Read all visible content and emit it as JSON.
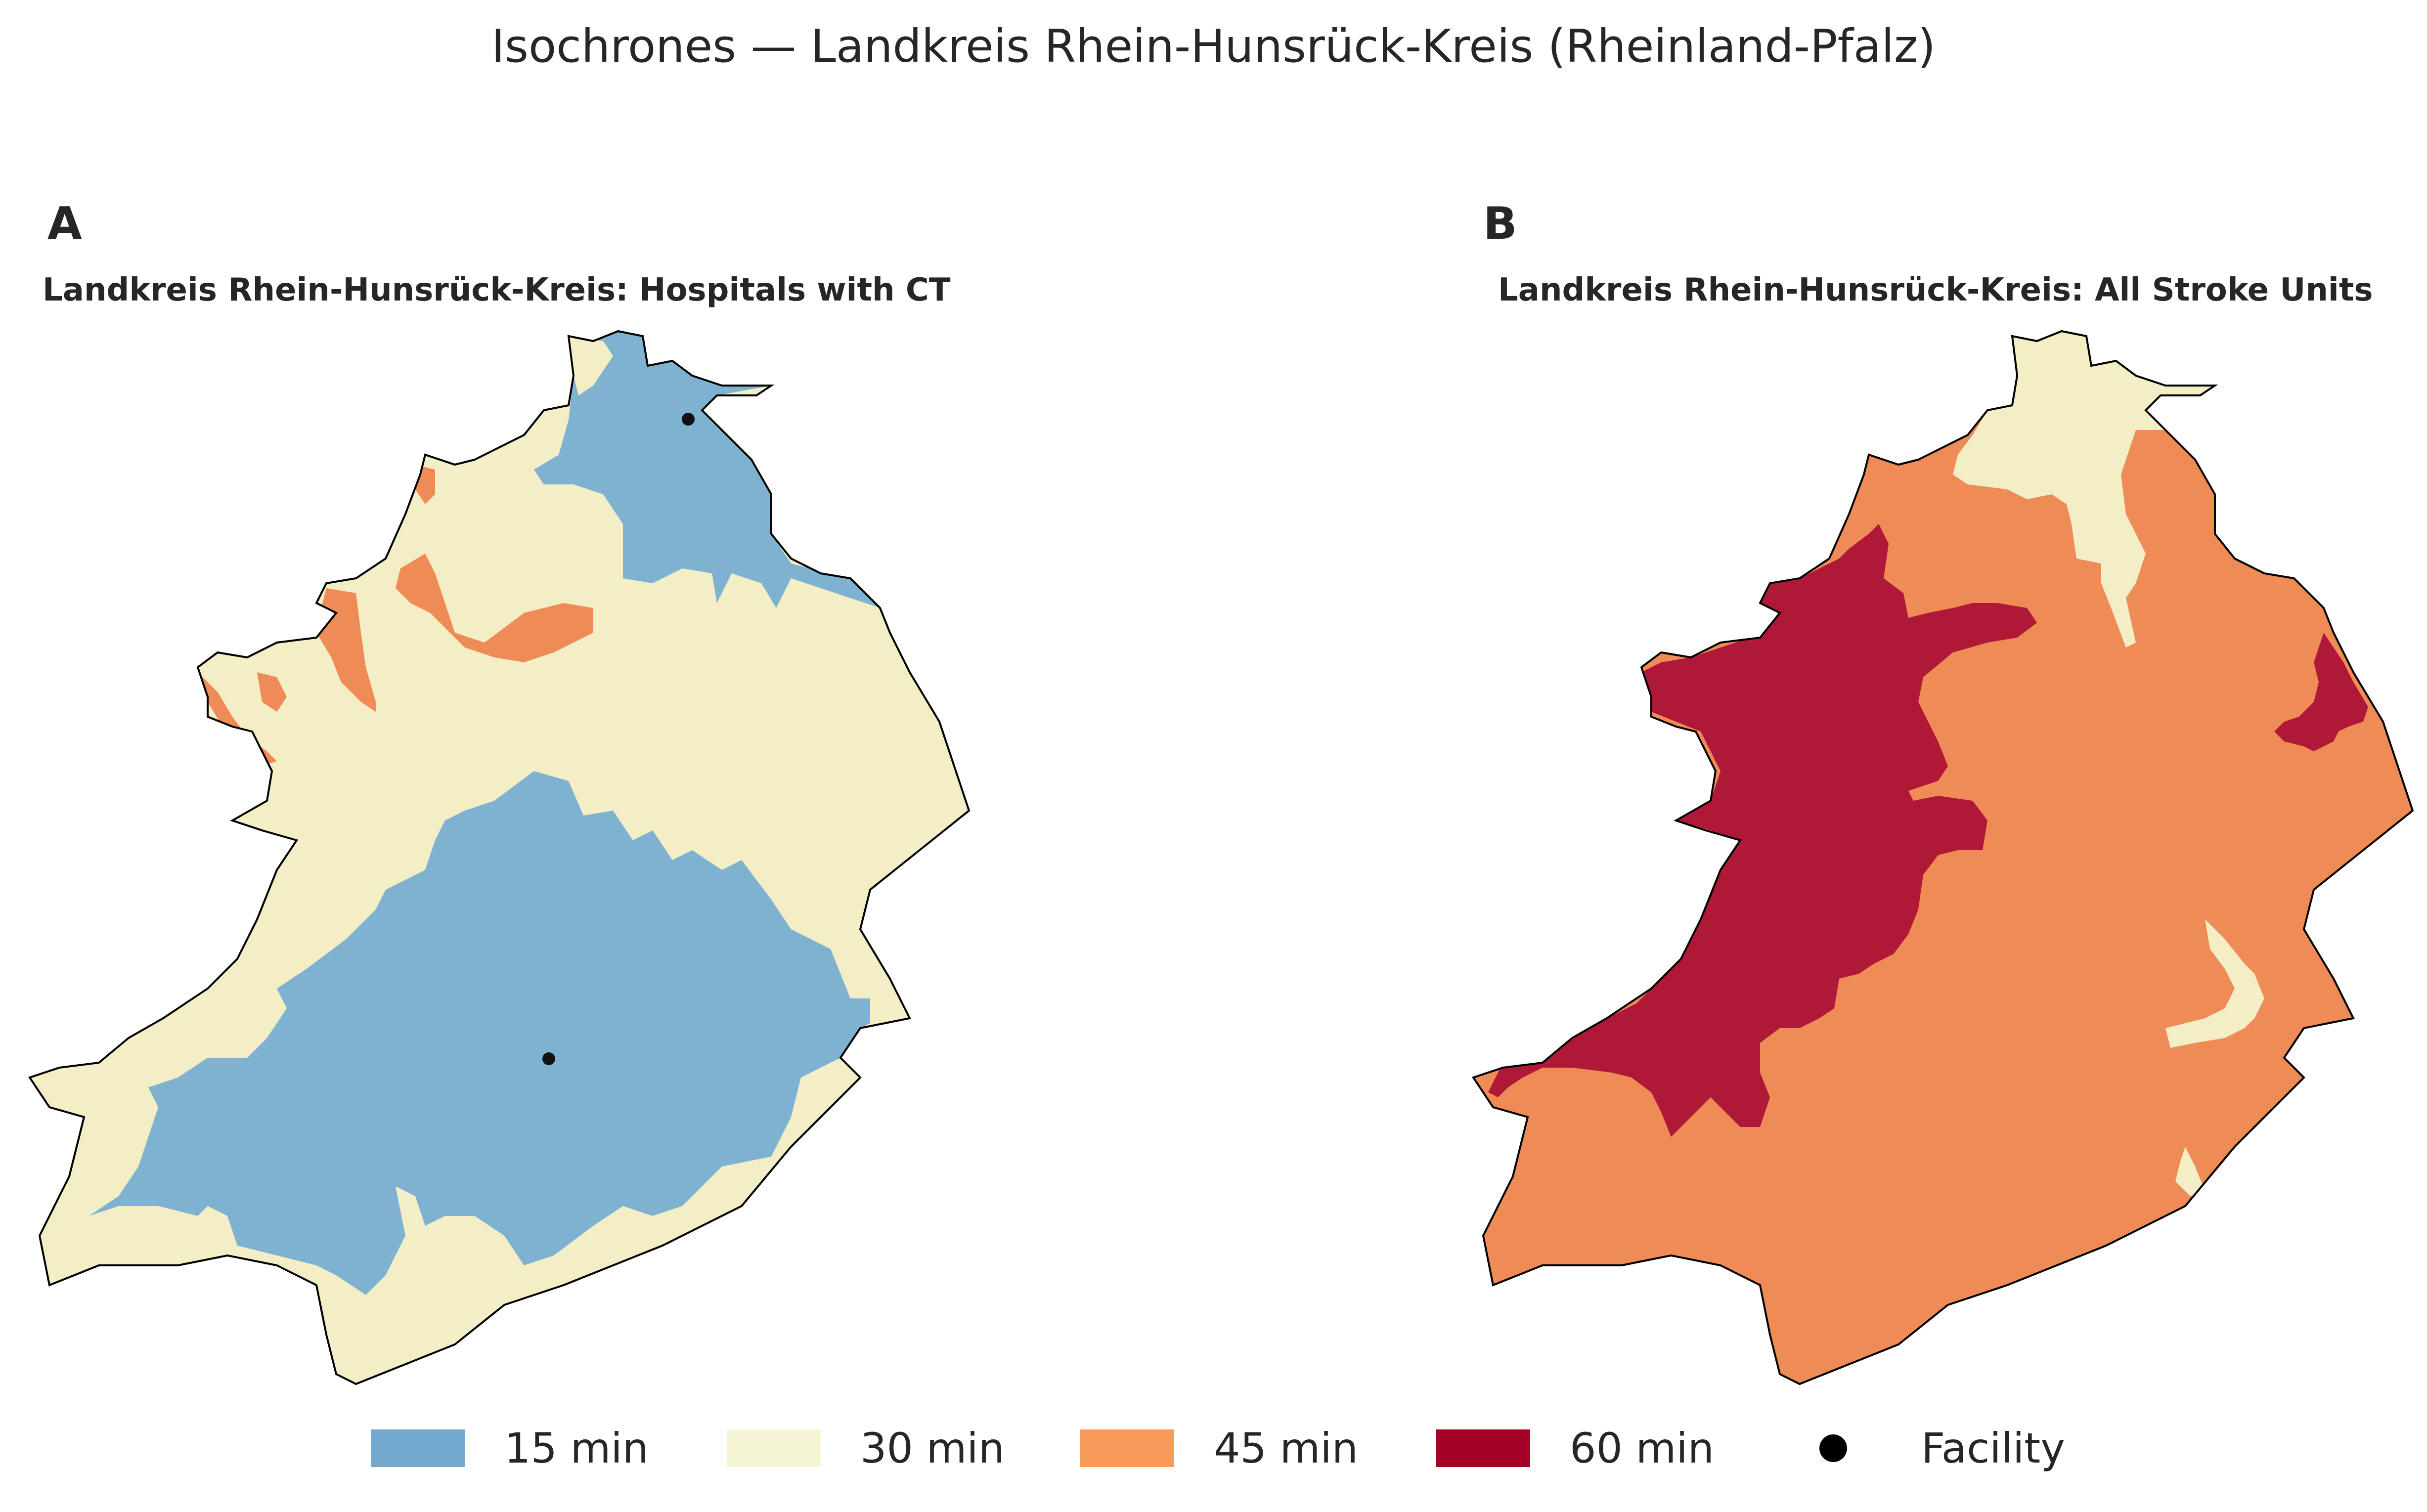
{
  "title": "Isochrones — Landkreis Rhein-Hunsrück-Kreis (Rheinland-Pfalz)",
  "panels": [
    {
      "letter": "A",
      "title": "Landkreis Rhein-Hunsrück-Kreis: Hospitals with CT"
    },
    {
      "letter": "B",
      "title": "Landkreis Rhein-Hunsrück-Kreis: All Stroke Units"
    }
  ],
  "legend": [
    {
      "label": "15 min",
      "color": "#74a9cf"
    },
    {
      "label": "30 min",
      "color": "#f5f5d5"
    },
    {
      "label": "45 min",
      "color": "#f89a5b"
    },
    {
      "label": "60 min",
      "color": "#a50026"
    },
    {
      "label": "Facility",
      "color": "#000000"
    }
  ],
  "colors": {
    "zone_15": "#7fb2d1",
    "zone_30": "#f3eec6",
    "zone_45": "#ef8b56",
    "zone_60": "#b01838",
    "outline": "#000000"
  }
}
